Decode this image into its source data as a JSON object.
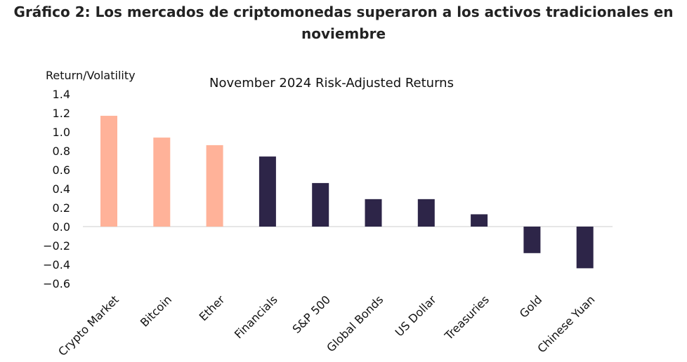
{
  "page": {
    "title": "Gráfico 2: Los mercados de criptomonedas superaron a los activos tradicionales en noviembre"
  },
  "chart_data": {
    "type": "bar",
    "title": "November 2024 Risk-Adjusted Returns",
    "xlabel": "",
    "ylabel": "Return/Volatility",
    "ylim": [
      -0.6,
      1.4
    ],
    "yticks": [
      "1.4",
      "1.2",
      "1.0",
      "0.8",
      "0.6",
      "0.4",
      "0.2",
      "0.0",
      "−0.2",
      "−0.4",
      "−0.6"
    ],
    "grid": false,
    "legend": "none",
    "categories": [
      "Crypto Market",
      "Bitcoin",
      "Ether",
      "Financials",
      "S&P 500",
      "Global Bonds",
      "US Dollar",
      "Treasuries",
      "Gold",
      "Chinese Yuan"
    ],
    "values": [
      1.17,
      0.94,
      0.86,
      0.74,
      0.46,
      0.29,
      0.29,
      0.13,
      -0.28,
      -0.44
    ],
    "colors": {
      "crypto": "#FFB299",
      "traditional": "#2D2548",
      "zero_line": "#cccccc"
    },
    "crypto_categories": [
      "Crypto Market",
      "Bitcoin",
      "Ether"
    ]
  }
}
